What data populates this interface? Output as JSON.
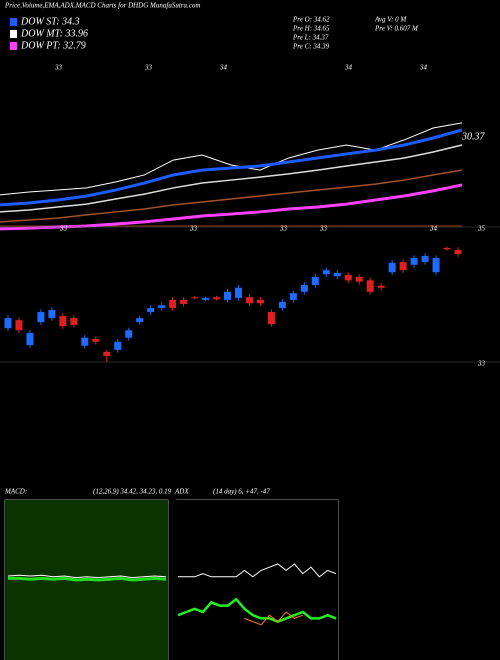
{
  "header": {
    "title": "Price,Volume,EMA,ADX,MACD Charts for DHDG MunafaSutra.com"
  },
  "legend": [
    {
      "label": "DOW ST: 34.3",
      "color": "#1f5cff"
    },
    {
      "label": "DOW MT: 33.96",
      "color": "#ffffff"
    },
    {
      "label": "DOW PT: 32.79",
      "color": "#ff40ff"
    }
  ],
  "info": [
    "Pre O: 34.62",
    "Pre H: 34.65",
    "Pre L: 34.37",
    "Pre C: 34.39",
    "Avg V: 0 M",
    "Pre V: 0.607 M"
  ],
  "chart_data": [
    {
      "type": "line",
      "top_labels": [
        "33",
        "33",
        "34",
        "34",
        "34"
      ],
      "annotation": "30.37",
      "categories": [
        null,
        null,
        null,
        null,
        null,
        null,
        null,
        null,
        null,
        null,
        null,
        null,
        null,
        null,
        null,
        null,
        null
      ],
      "ylim": [
        27,
        35
      ],
      "series": [
        {
          "color": "#ffffff",
          "width": 1,
          "values": [
            28.65,
            28.79,
            28.88,
            28.98,
            29.26,
            29.59,
            30.29,
            30.53,
            30.06,
            29.82,
            30.39,
            30.76,
            31.0,
            30.76,
            31.24,
            31.8,
            32.04
          ]
        },
        {
          "name": "DOW ST",
          "color": "#1f5cff",
          "width": 3,
          "values": [
            28.18,
            28.27,
            28.41,
            28.6,
            28.88,
            29.21,
            29.59,
            29.82,
            29.92,
            30.01,
            30.2,
            30.39,
            30.58,
            30.76,
            31.0,
            31.33,
            31.71
          ]
        },
        {
          "name": "DOW MT",
          "color": "#dddddd",
          "width": 1.5,
          "values": [
            27.85,
            27.94,
            28.08,
            28.22,
            28.46,
            28.69,
            28.98,
            29.21,
            29.35,
            29.49,
            29.64,
            29.82,
            30.01,
            30.2,
            30.39,
            30.67,
            31.0
          ]
        },
        {
          "color": "#a0522d",
          "width": 1.5,
          "values": [
            27.38,
            27.47,
            27.56,
            27.71,
            27.85,
            27.99,
            28.18,
            28.32,
            28.46,
            28.6,
            28.74,
            28.88,
            29.02,
            29.16,
            29.35,
            29.59,
            29.82
          ]
        },
        {
          "name": "DOW PT",
          "color": "#ff40ff",
          "width": 3,
          "values": [
            27.05,
            27.09,
            27.14,
            27.19,
            27.28,
            27.38,
            27.52,
            27.66,
            27.75,
            27.85,
            27.99,
            28.08,
            28.22,
            28.41,
            28.6,
            28.84,
            29.12
          ]
        }
      ]
    },
    {
      "type": "candlestick",
      "mid_labels": [
        "33",
        "33",
        "33",
        "33",
        "34"
      ],
      "up_color": "#1e6bff",
      "down_color": "#e02020",
      "ylim": [
        33,
        35
      ],
      "yticks": [
        33,
        35
      ],
      "categories": [
        null,
        null,
        null,
        null,
        null,
        null,
        null,
        null,
        null,
        null,
        null,
        null,
        null,
        null,
        null,
        null,
        null,
        null,
        null,
        null,
        null,
        null,
        null,
        null,
        null,
        null,
        null,
        null,
        null,
        null,
        null,
        null,
        null,
        null,
        null,
        null,
        null,
        null,
        null,
        null,
        null,
        null
      ],
      "open": [
        33.5,
        33.62,
        33.25,
        33.59,
        33.65,
        33.68,
        33.65,
        33.24,
        33.34,
        33.15,
        33.18,
        33.36,
        33.59,
        33.74,
        33.8,
        33.92,
        33.92,
        33.96,
        33.92,
        33.96,
        33.92,
        33.95,
        33.96,
        33.92,
        33.74,
        33.8,
        33.92,
        34.04,
        34.14,
        34.3,
        34.27,
        34.29,
        34.26,
        34.21,
        34.13,
        34.33,
        34.48,
        34.44,
        34.48,
        34.33,
        34.69,
        34.66
      ],
      "high": [
        33.69,
        33.66,
        33.47,
        33.78,
        33.81,
        33.72,
        33.69,
        33.4,
        33.38,
        33.18,
        33.34,
        33.51,
        33.69,
        33.84,
        33.88,
        33.96,
        33.96,
        33.98,
        33.97,
        33.98,
        34.08,
        34.14,
        34.0,
        33.96,
        33.78,
        33.93,
        34.06,
        34.18,
        34.3,
        34.4,
        34.36,
        34.33,
        34.3,
        34.25,
        34.17,
        34.51,
        34.52,
        34.58,
        34.61,
        34.58,
        34.71,
        34.7
      ],
      "low": [
        33.46,
        33.43,
        33.21,
        33.55,
        33.61,
        33.49,
        33.51,
        33.2,
        33.26,
        33.0,
        33.14,
        33.32,
        33.55,
        33.7,
        33.76,
        33.76,
        33.82,
        33.93,
        33.9,
        33.91,
        33.88,
        33.91,
        33.83,
        33.83,
        33.52,
        33.76,
        33.88,
        34.0,
        34.1,
        34.26,
        34.23,
        34.17,
        34.15,
        34.0,
        34.06,
        34.29,
        34.32,
        34.4,
        34.44,
        34.29,
        34.65,
        34.56
      ],
      "close": [
        33.65,
        33.47,
        33.43,
        33.74,
        33.77,
        33.53,
        33.55,
        33.36,
        33.3,
        33.09,
        33.3,
        33.47,
        33.65,
        33.8,
        33.84,
        33.8,
        33.86,
        33.95,
        33.95,
        33.93,
        34.04,
        34.1,
        33.87,
        33.87,
        33.56,
        33.89,
        34.02,
        34.14,
        34.26,
        34.36,
        34.32,
        34.21,
        34.19,
        34.04,
        34.1,
        34.47,
        34.36,
        34.54,
        34.57,
        34.54,
        34.67,
        34.6
      ]
    },
    {
      "type": "line",
      "title": "MACD:",
      "subtitle": "(12,26,9) 34.42, 34.23, 0.19",
      "background": "#0b3300",
      "categories": [
        null,
        null,
        null,
        null,
        null,
        null,
        null,
        null,
        null,
        null,
        null,
        null,
        null,
        null,
        null
      ],
      "ylim": [
        -1,
        1
      ],
      "series": [
        {
          "color": "#ffffff",
          "width": 1,
          "values": [
            0.05,
            0.06,
            0.05,
            0.06,
            0.04,
            0.05,
            0.03,
            0.04,
            0.03,
            0.04,
            0.05,
            0.03,
            0.04,
            0.05,
            0.04
          ]
        },
        {
          "color": "#22dd22",
          "width": 3,
          "values": [
            0.02,
            0.02,
            0.01,
            0.02,
            0.01,
            0.02,
            0.0,
            0.01,
            0.0,
            0.01,
            0.02,
            0.0,
            0.01,
            0.02,
            0.01
          ]
        }
      ]
    },
    {
      "type": "line",
      "title": "ADX",
      "subtitle": "(14 day) 6, +47, -47",
      "background": "#000000",
      "categories": [
        null,
        null,
        null,
        null,
        null,
        null,
        null,
        null,
        null,
        null,
        null,
        null,
        null,
        null,
        null,
        null,
        null,
        null,
        null,
        null
      ],
      "ylim": [
        0,
        100
      ],
      "series": [
        {
          "color": "#ffffff",
          "width": 1,
          "values": [
            52,
            52,
            52,
            54,
            52,
            52,
            52,
            52,
            56,
            52,
            56,
            58,
            60,
            56,
            60,
            54,
            58,
            52,
            56,
            54
          ]
        },
        {
          "color": "#22ee22",
          "width": 2.5,
          "values": [
            28,
            30,
            32,
            30,
            36,
            34,
            34,
            38,
            32,
            28,
            26,
            26,
            24,
            26,
            28,
            30,
            26,
            26,
            28,
            26
          ]
        },
        {
          "color": "#ff7a1a",
          "width": 1,
          "values": [
            null,
            null,
            null,
            null,
            null,
            null,
            null,
            null,
            26,
            24,
            22,
            28,
            24,
            30,
            26,
            28,
            null,
            null,
            null,
            null
          ]
        }
      ]
    }
  ]
}
